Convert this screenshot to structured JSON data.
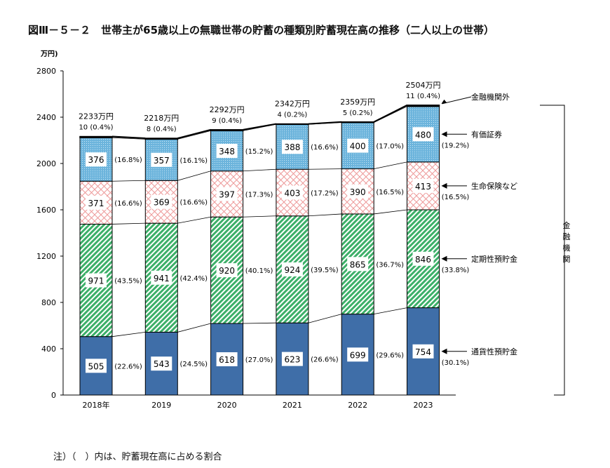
{
  "chart_data": {
    "type": "bar",
    "stacked": true,
    "title": "図Ⅲ－５－２　世帯主が65歳以上の無職世帯の貯蓄の種類別貯蓄現在高の推移（二人以上の世帯）",
    "ylabel": "万円)",
    "ylim": [
      0,
      2800
    ],
    "yticks": [
      0,
      400,
      800,
      1200,
      1600,
      2000,
      2400,
      2800
    ],
    "categories": [
      "2018年",
      "2019",
      "2020",
      "2021",
      "2022",
      "2023"
    ],
    "totals": [
      "2233万円",
      "2218万円",
      "2292万円",
      "2342万円",
      "2359万円",
      "2504万円"
    ],
    "series": [
      {
        "name": "通貨性預貯金",
        "color": "#3f6ea8",
        "values": [
          505,
          543,
          618,
          623,
          699,
          754
        ],
        "percents": [
          "(22.6%)",
          "(24.5%)",
          "(27.0%)",
          "(26.6%)",
          "(29.6%)",
          "(30.1%)"
        ]
      },
      {
        "name": "定期性預貯金",
        "color": "#3caf68",
        "values": [
          971,
          941,
          920,
          924,
          865,
          846
        ],
        "percents": [
          "(43.5%)",
          "(42.4%)",
          "(40.1%)",
          "(39.5%)",
          "(36.7%)",
          "(33.8%)"
        ]
      },
      {
        "name": "生命保険など",
        "color": "#f0a0a0",
        "values": [
          371,
          369,
          397,
          403,
          390,
          413
        ],
        "percents": [
          "(16.6%)",
          "(16.6%)",
          "(17.3%)",
          "(17.2%)",
          "(16.5%)",
          "(16.5%)"
        ]
      },
      {
        "name": "有価証券",
        "color": "#6cb4dc",
        "values": [
          376,
          357,
          348,
          388,
          400,
          480
        ],
        "percents": [
          "(16.8%)",
          "(16.1%)",
          "(15.2%)",
          "(16.6%)",
          "(17.0%)",
          "(19.2%)"
        ]
      },
      {
        "name": "金融機関外",
        "color": "#111111",
        "values": [
          10,
          8,
          9,
          4,
          5,
          11
        ],
        "percents": [
          "(0.4%)",
          "(0.4%)",
          "(0.4%)",
          "(0.2%)",
          "(0.2%)",
          "(0.4%)"
        ]
      }
    ],
    "bracket_label": "金融機関",
    "grid": false,
    "legend": "right"
  },
  "note": "注）（　）内は、貯蓄現在高に占める割合"
}
